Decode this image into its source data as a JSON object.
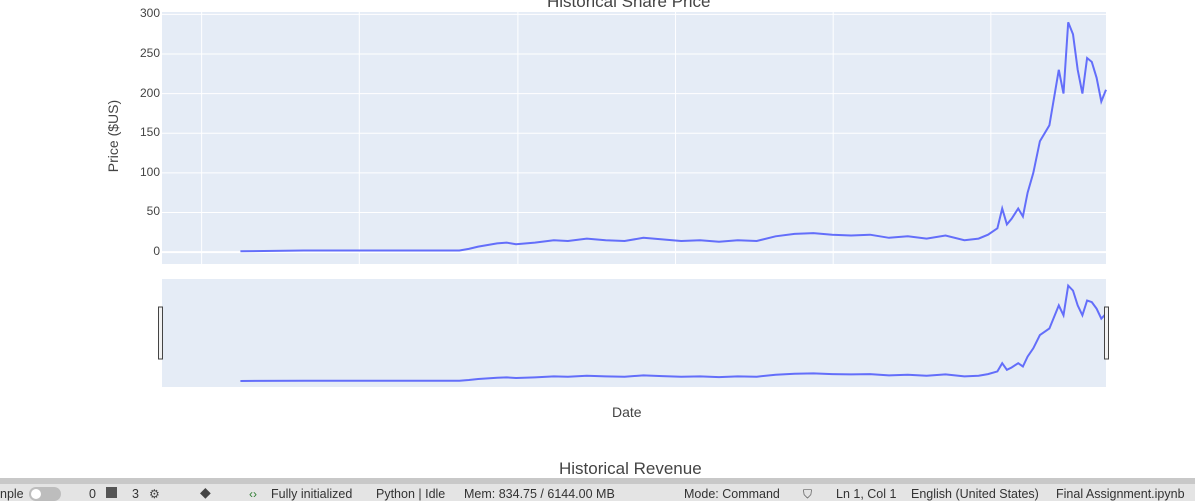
{
  "chart_data": {
    "type": "line",
    "title": "Historical Share Price",
    "ylabel": "Price ($US)",
    "xlabel": "Date",
    "yticks": [
      0,
      50,
      100,
      150,
      200,
      250,
      300
    ],
    "ylim": [
      -15,
      303
    ],
    "xlim": [
      0,
      100
    ],
    "grid": true,
    "rangeslider": true,
    "series": [
      {
        "color": "#636efa",
        "x": [
          8.3,
          15,
          20,
          25,
          30,
          31.5,
          32.5,
          33.5,
          34.5,
          35.5,
          36.5,
          37.5,
          39.5,
          41.5,
          43,
          45,
          47,
          49,
          51,
          53,
          55,
          57,
          59,
          61,
          63,
          65,
          67,
          69,
          71,
          73,
          75,
          77,
          79,
          81,
          83,
          85,
          86.5,
          87.5,
          88.5,
          89,
          89.5,
          90,
          90.7,
          91.2,
          91.7,
          92.3,
          93,
          94,
          95,
          95.5,
          96,
          96.5,
          97,
          97.5,
          98,
          98.5,
          99,
          99.5,
          100
        ],
        "y": [
          1,
          2,
          2,
          2,
          2,
          2,
          4,
          7,
          9,
          11,
          12,
          10,
          12,
          15,
          14,
          17,
          15,
          14,
          18,
          16,
          14,
          15,
          13,
          15,
          14,
          20,
          23,
          24,
          22,
          21,
          22,
          18,
          20,
          17,
          21,
          15,
          17,
          22,
          30,
          55,
          35,
          42,
          55,
          45,
          75,
          100,
          140,
          160,
          230,
          200,
          290,
          275,
          230,
          200,
          245,
          240,
          220,
          190,
          205
        ]
      }
    ]
  },
  "revenue_title": "Historical Revenue",
  "statusbar": {
    "mode_text": "nple",
    "terminals_count": "0",
    "kernels_count": "3",
    "kernel_status": "Fully initialized",
    "kernel_name": "Python | Idle",
    "memory": "Mem: 834.75 / 6144.00 MB",
    "mode": "Mode: Command",
    "cursor": "Ln 1, Col 1",
    "language": "English (United States)",
    "filename": "Final Assignment.ipynb"
  }
}
